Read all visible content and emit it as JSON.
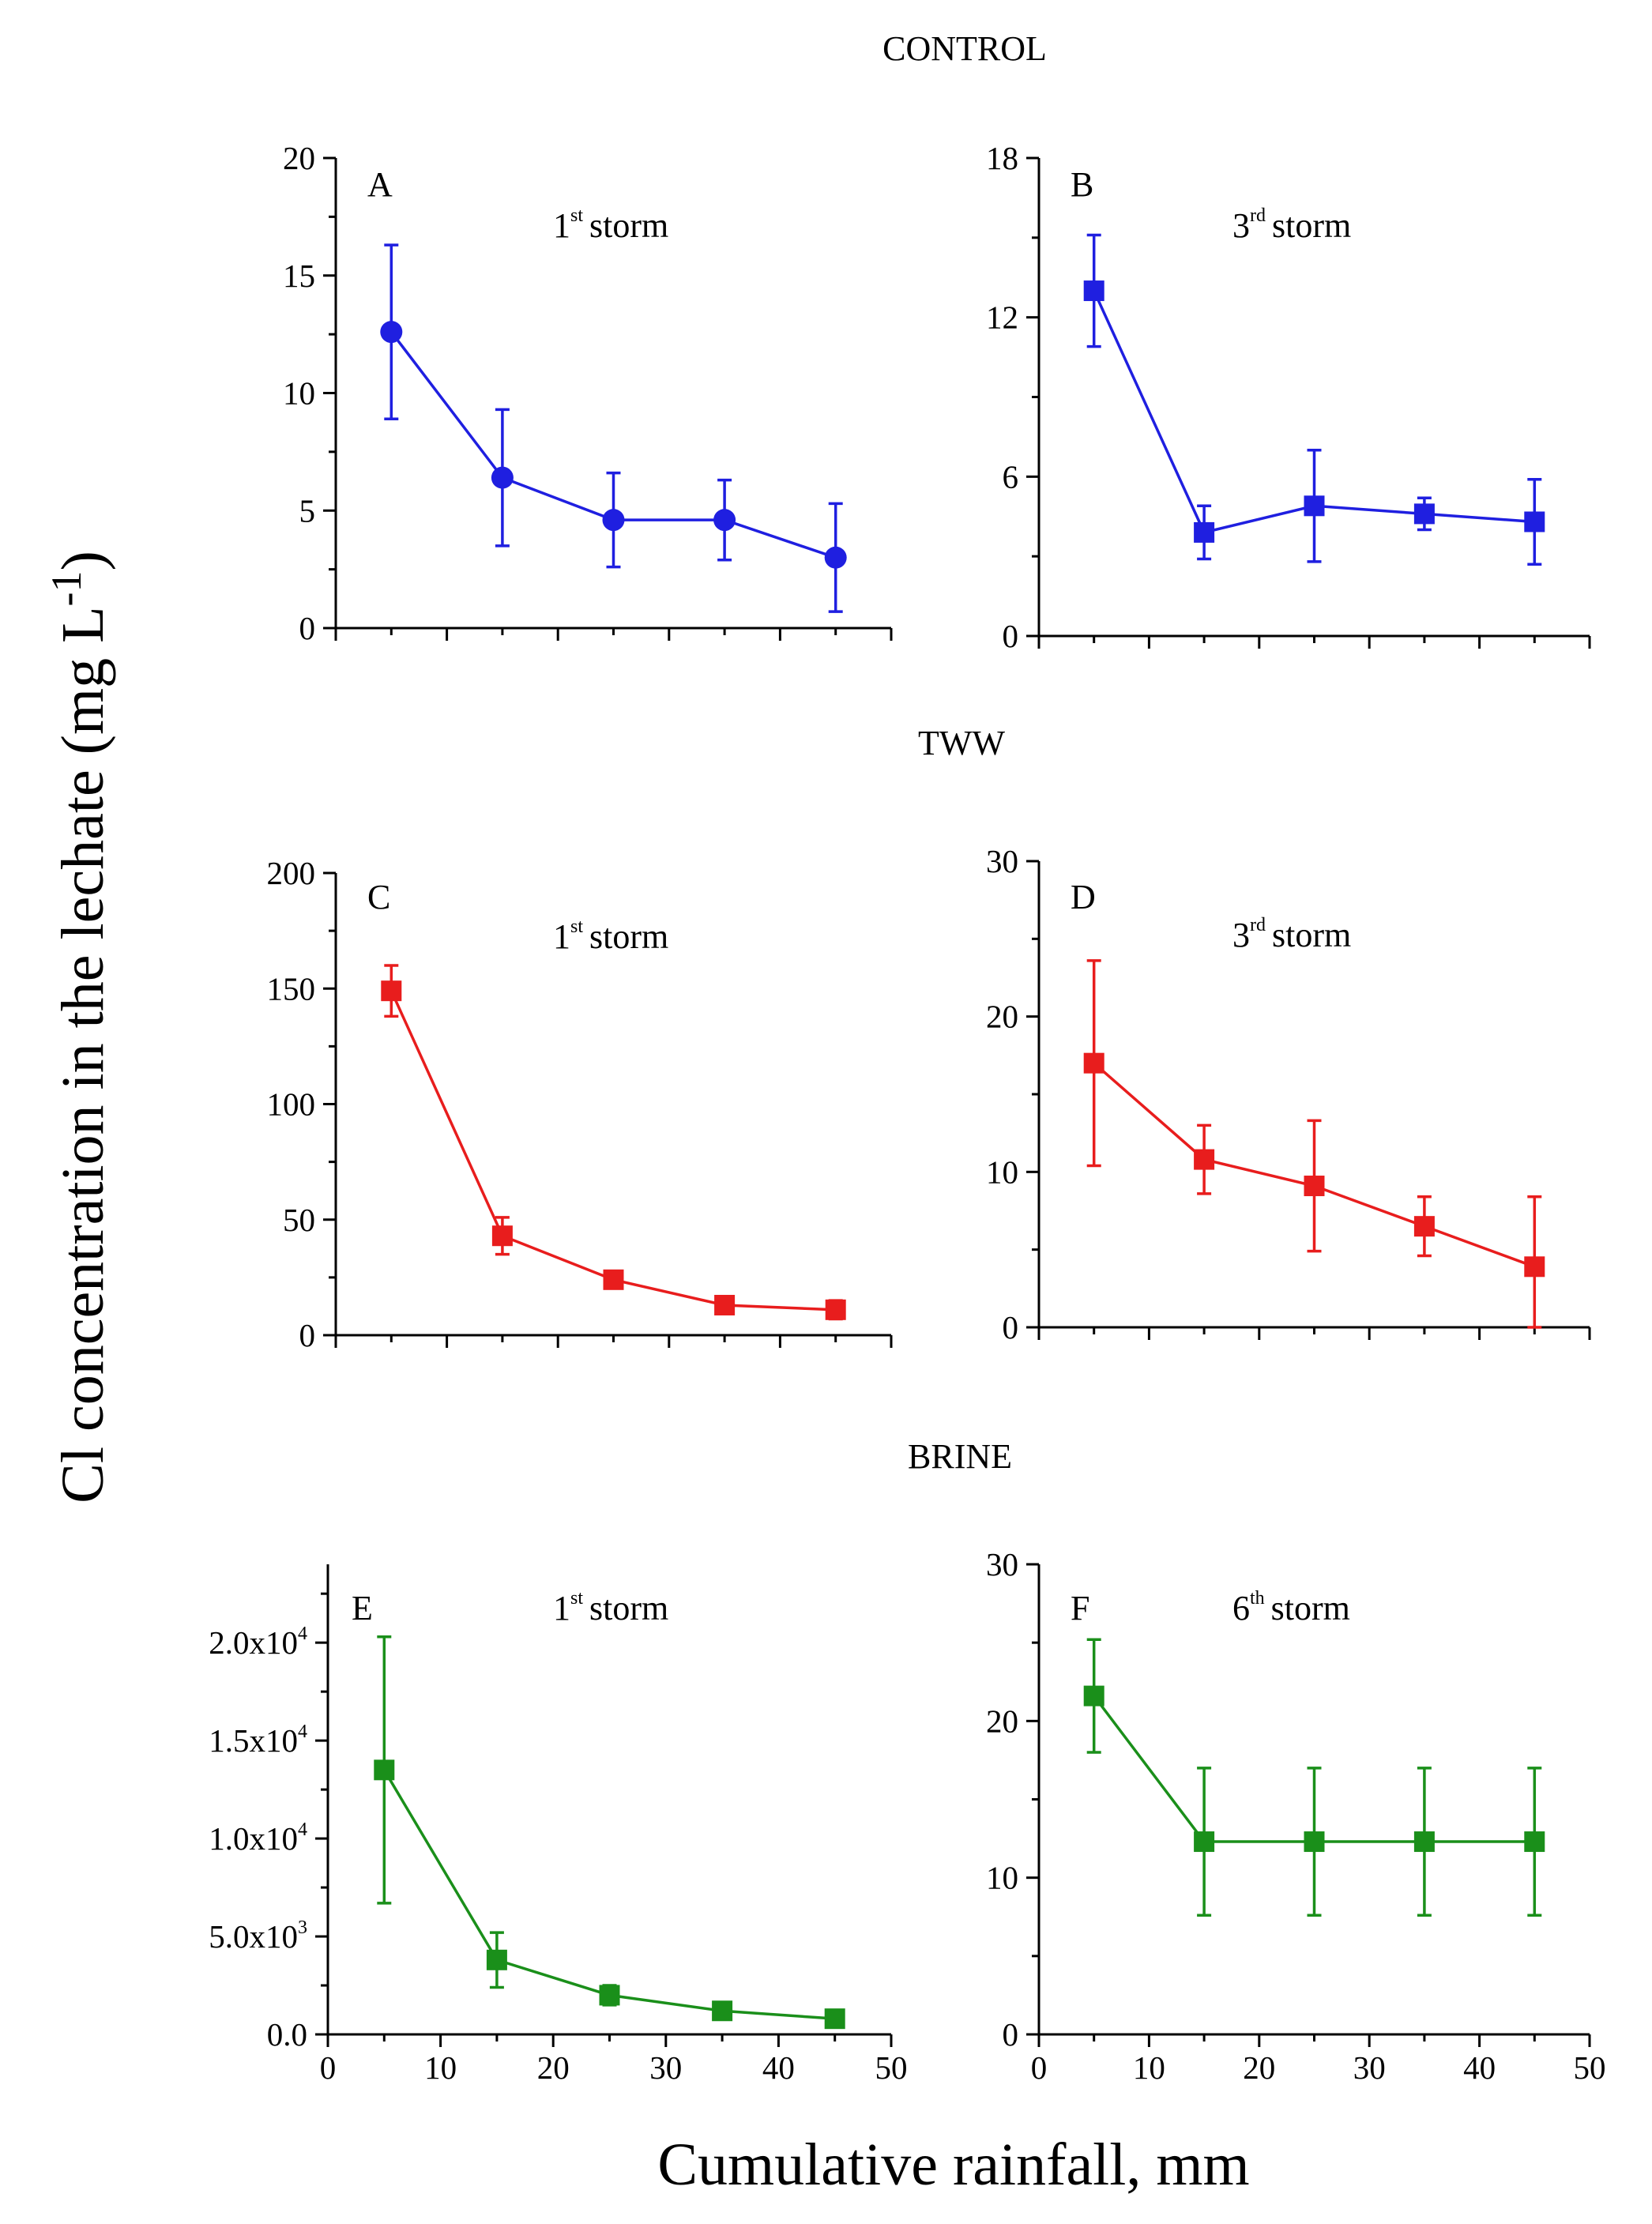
{
  "figure": {
    "y_axis_title": "Cl concentration in the lechate (mg L",
    "y_axis_title_sup": "-1",
    "y_axis_title_end": ")",
    "x_axis_title": "Cumulative rainfall, mm",
    "section_titles": [
      "CONTROL",
      "TWW",
      "BRINE"
    ]
  },
  "chart_data": [
    {
      "type": "line",
      "panel": "A",
      "group": "CONTROL",
      "storm_number": "1",
      "storm_suffix": "st",
      "storm_word": "storm",
      "color": "#1f1fe0",
      "marker": "circle",
      "x": [
        5,
        15,
        25,
        35,
        45
      ],
      "y": [
        12.6,
        6.4,
        4.6,
        4.6,
        3.0
      ],
      "err": [
        3.7,
        2.9,
        2.0,
        1.7,
        2.3
      ],
      "xlim": [
        0,
        50
      ],
      "ylim": [
        0,
        20
      ],
      "yticks": [
        0,
        5,
        10,
        15,
        20
      ],
      "yticklabels": [
        "0",
        "5",
        "10",
        "15",
        "20"
      ],
      "xticks": [
        0,
        10,
        20,
        30,
        40,
        50
      ],
      "xticklabels": [
        "0",
        "10",
        "20",
        "30",
        "40",
        "50"
      ],
      "show_xticklabels": false
    },
    {
      "type": "line",
      "panel": "B",
      "group": "CONTROL",
      "storm_number": "3",
      "storm_suffix": "rd",
      "storm_word": "storm",
      "color": "#1f1fe0",
      "marker": "square",
      "x": [
        5,
        15,
        25,
        35,
        45
      ],
      "y": [
        13.0,
        3.9,
        4.9,
        4.6,
        4.3
      ],
      "err": [
        2.1,
        1.0,
        2.1,
        0.6,
        1.6
      ],
      "xlim": [
        0,
        50
      ],
      "ylim": [
        0,
        18
      ],
      "yticks": [
        0,
        6,
        12,
        18
      ],
      "yticklabels": [
        "0",
        "6",
        "12",
        "18"
      ],
      "xticks": [
        0,
        10,
        20,
        30,
        40,
        50
      ],
      "xticklabels": [
        "0",
        "10",
        "20",
        "30",
        "40",
        "50"
      ],
      "show_xticklabels": false
    },
    {
      "type": "line",
      "panel": "C",
      "group": "TWW",
      "storm_number": "1",
      "storm_suffix": "st",
      "storm_word": "storm",
      "color": "#e81d1d",
      "marker": "square",
      "x": [
        5,
        15,
        25,
        35,
        45
      ],
      "y": [
        149,
        43,
        24,
        13,
        11
      ],
      "err": [
        11,
        8,
        3,
        3,
        4
      ],
      "xlim": [
        0,
        50
      ],
      "ylim": [
        0,
        200
      ],
      "yticks": [
        0,
        50,
        100,
        150,
        200
      ],
      "yticklabels": [
        "0",
        "50",
        "100",
        "150",
        "200"
      ],
      "xticks": [
        0,
        10,
        20,
        30,
        40,
        50
      ],
      "xticklabels": [
        "0",
        "10",
        "20",
        "30",
        "40",
        "50"
      ],
      "show_xticklabels": false
    },
    {
      "type": "line",
      "panel": "D",
      "group": "TWW",
      "storm_number": "3",
      "storm_suffix": "rd",
      "storm_word": "storm",
      "color": "#e81d1d",
      "marker": "square",
      "x": [
        5,
        15,
        25,
        35,
        45
      ],
      "y": [
        17.0,
        10.8,
        9.1,
        6.5,
        3.9
      ],
      "err": [
        6.6,
        2.2,
        4.2,
        1.9,
        4.5
      ],
      "xlim": [
        0,
        50
      ],
      "ylim": [
        0,
        30
      ],
      "yticks": [
        0,
        10,
        20,
        30
      ],
      "yticklabels": [
        "0",
        "10",
        "20",
        "30"
      ],
      "xticks": [
        0,
        10,
        20,
        30,
        40,
        50
      ],
      "xticklabels": [
        "0",
        "10",
        "20",
        "30",
        "40",
        "50"
      ],
      "show_xticklabels": false
    },
    {
      "type": "line",
      "panel": "E",
      "group": "BRINE",
      "storm_number": "1",
      "storm_suffix": "st",
      "storm_word": "storm",
      "color": "#1a8f1a",
      "marker": "square",
      "x": [
        5,
        15,
        25,
        35,
        45
      ],
      "y": [
        13500,
        3800,
        2000,
        1200,
        800
      ],
      "err": [
        6800,
        1400,
        500,
        300,
        200
      ],
      "xlim": [
        0,
        50
      ],
      "ylim": [
        0,
        24000
      ],
      "yticks": [
        0,
        5000,
        10000,
        15000,
        20000
      ],
      "yticklabels": [
        "0.0",
        "5.0x10",
        "1.0x10",
        "1.5x10",
        "2.0x10"
      ],
      "yticksups": [
        "",
        "3",
        "4",
        "4",
        "4"
      ],
      "xticks": [
        0,
        10,
        20,
        30,
        40,
        50
      ],
      "xticklabels": [
        "0",
        "10",
        "20",
        "30",
        "40",
        "50"
      ],
      "show_xticklabels": true
    },
    {
      "type": "line",
      "panel": "F",
      "group": "BRINE",
      "storm_number": "6",
      "storm_suffix": "th",
      "storm_word": "storm",
      "color": "#1a8f1a",
      "marker": "square",
      "x": [
        5,
        15,
        25,
        35,
        45
      ],
      "y": [
        21.6,
        12.3,
        12.3,
        12.3,
        12.3
      ],
      "err": [
        3.6,
        4.7,
        4.7,
        4.7,
        4.7
      ],
      "xlim": [
        0,
        50
      ],
      "ylim": [
        0,
        30
      ],
      "yticks": [
        0,
        10,
        20,
        30
      ],
      "yticklabels": [
        "0",
        "10",
        "20",
        "30"
      ],
      "xticks": [
        0,
        10,
        20,
        30,
        40,
        50
      ],
      "xticklabels": [
        "0",
        "10",
        "20",
        "30",
        "40",
        "50"
      ],
      "show_xticklabels": true
    }
  ]
}
